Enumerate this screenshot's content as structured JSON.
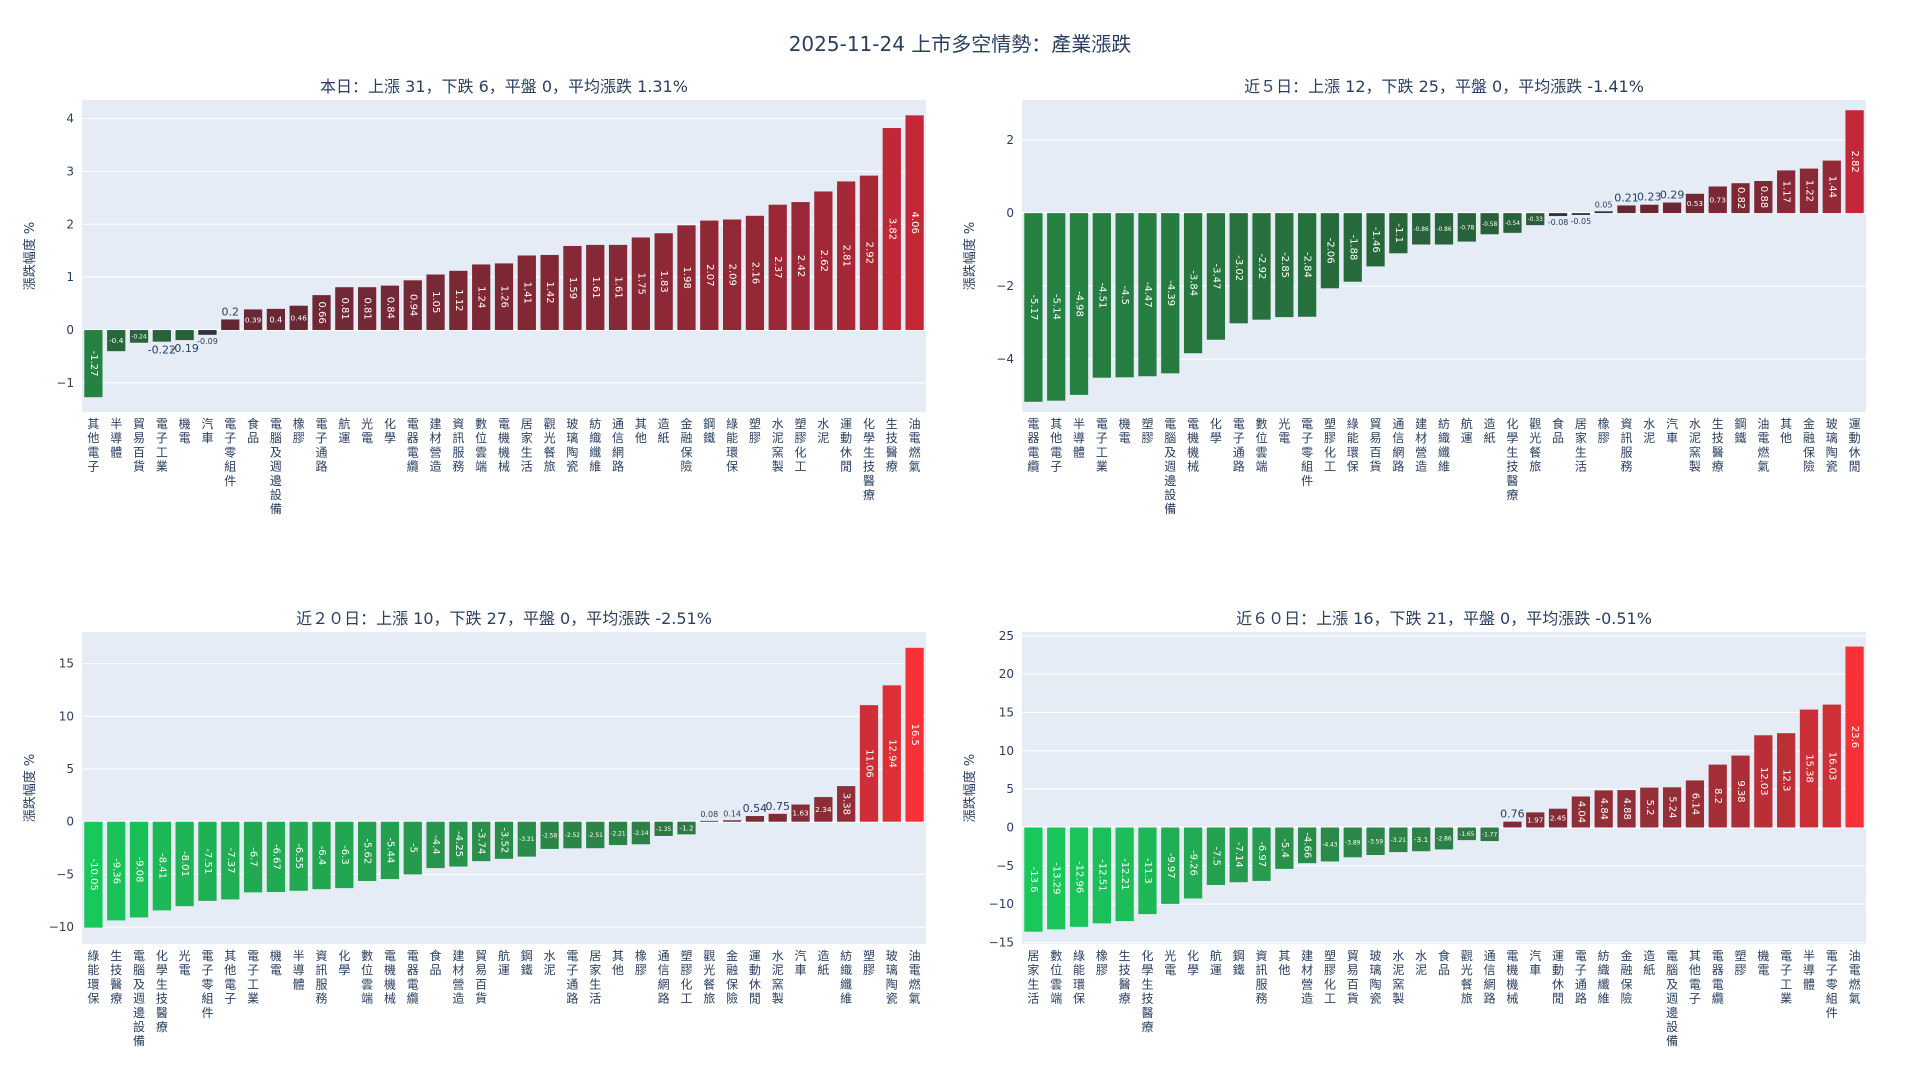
{
  "page": {
    "title": "2025-11-24 上市多空情勢：產業漲跌"
  },
  "chart_data": [
    {
      "type": "bar",
      "title": "本日：上漲 31，下跌 6，平盤 0，平均漲跌 1.31%",
      "ylabel": "漲跌幅度 %",
      "ylim": [
        -1.55,
        4.35
      ],
      "yticks": [
        -1,
        0,
        1,
        2,
        3,
        4
      ],
      "color_range": [
        -1.27,
        4.06
      ],
      "scheme": "dark",
      "categories": [
        "其他電子",
        "半導體",
        "貿易百貨",
        "電子工業",
        "機電",
        "汽車",
        "電子零組件",
        "食品",
        "電腦及週邊設備",
        "橡膠",
        "電子通路",
        "航運",
        "光電",
        "化學",
        "電器電纜",
        "建材營造",
        "資訊服務",
        "數位雲端",
        "電機機械",
        "居家生活",
        "觀光餐旅",
        "玻璃陶瓷",
        "紡織纖維",
        "通信網路",
        "其他",
        "造紙",
        "金融保險",
        "鋼鐵",
        "綠能環保",
        "塑膠",
        "水泥窯製",
        "塑膠化工",
        "水泥",
        "運動休閒",
        "化學生技醫療",
        "生技醫療",
        "油電燃氣"
      ],
      "values": [
        -1.27,
        -0.4,
        -0.24,
        -0.22,
        -0.19,
        -0.09,
        0.2,
        0.39,
        0.4,
        0.46,
        0.66,
        0.81,
        0.81,
        0.84,
        0.94,
        1.05,
        1.12,
        1.24,
        1.26,
        1.41,
        1.42,
        1.59,
        1.61,
        1.61,
        1.75,
        1.83,
        1.98,
        2.07,
        2.09,
        2.16,
        2.37,
        2.42,
        2.62,
        2.81,
        2.92,
        3.82,
        4.06
      ],
      "labels": [
        "-1.27",
        "-0.4",
        "-0.24",
        "-0.22",
        "-0.19",
        "-0.09",
        "0.2",
        "0.39",
        "0.4",
        "0.46",
        "0.66",
        "0.81",
        "0.81",
        "0.84",
        "0.94",
        "1.05",
        "1.12",
        "1.24",
        "1.26",
        "1.41",
        "1.42",
        "1.59",
        "1.61",
        "1.61",
        "1.75",
        "1.83",
        "1.98",
        "2.07",
        "2.09",
        "2.16",
        "2.37",
        "2.42",
        "2.62",
        "2.81",
        "2.92",
        "3.82",
        "4.06"
      ]
    },
    {
      "type": "bar",
      "title": "近５日：上漲 12，下跌 25，平盤 0，平均漲跌 -1.41%",
      "ylabel": "漲跌幅度 %",
      "ylim": [
        -5.45,
        3.1
      ],
      "yticks": [
        -4,
        -2,
        0,
        2
      ],
      "color_range": [
        -5.17,
        2.82
      ],
      "scheme": "dark",
      "categories": [
        "電器電纜",
        "其他電子",
        "半導體",
        "電子工業",
        "機電",
        "塑膠",
        "電腦及週邊設備",
        "電機機械",
        "化學",
        "電子通路",
        "數位雲端",
        "光電",
        "電子零組件",
        "塑膠化工",
        "綠能環保",
        "貿易百貨",
        "通信網路",
        "建材營造",
        "紡織纖維",
        "航運",
        "造紙",
        "化學生技醫療",
        "觀光餐旅",
        "食品",
        "居家生活",
        "橡膠",
        "資訊服務",
        "水泥",
        "汽車",
        "水泥窯製",
        "生技醫療",
        "鋼鐵",
        "油電燃氣",
        "其他",
        "金融保險",
        "玻璃陶瓷",
        "運動休閒"
      ],
      "values": [
        -5.17,
        -5.14,
        -4.98,
        -4.51,
        -4.5,
        -4.47,
        -4.39,
        -3.84,
        -3.47,
        -3.02,
        -2.92,
        -2.85,
        -2.84,
        -2.06,
        -1.88,
        -1.46,
        -1.1,
        -0.86,
        -0.86,
        -0.78,
        -0.58,
        -0.54,
        -0.33,
        -0.08,
        -0.05,
        0.05,
        0.21,
        0.23,
        0.29,
        0.53,
        0.73,
        0.82,
        0.88,
        1.17,
        1.22,
        1.44,
        2.82
      ],
      "labels": [
        "-5.17",
        "-5.14",
        "-4.98",
        "-4.51",
        "-4.5",
        "-4.47",
        "-4.39",
        "-3.84",
        "-3.47",
        "-3.02",
        "-2.92",
        "-2.85",
        "-2.84",
        "-2.06",
        "-1.88",
        "-1.46",
        "-1.1",
        "-0.86",
        "-0.86",
        "-0.78",
        "-0.58",
        "-0.54",
        "-0.33",
        "-0.08",
        "-0.05",
        "0.05",
        "0.21",
        "0.23",
        "0.29",
        "0.53",
        "0.73",
        "0.82",
        "0.88",
        "1.17",
        "1.22",
        "1.44",
        "2.82"
      ]
    },
    {
      "type": "bar",
      "title": "近２０日：上漲 10，下跌 27，平盤 0，平均漲跌 -2.51%",
      "ylabel": "漲跌幅度 %",
      "ylim": [
        -11.6,
        18.0
      ],
      "yticks": [
        -10,
        -5,
        0,
        5,
        10,
        15
      ],
      "color_range": [
        -10.05,
        16.5
      ],
      "scheme": "bright",
      "categories": [
        "綠能環保",
        "生技醫療",
        "電腦及週邊設備",
        "化學生技醫療",
        "光電",
        "電子零組件",
        "其他電子",
        "電子工業",
        "機電",
        "半導體",
        "資訊服務",
        "化學",
        "數位雲端",
        "電機機械",
        "電器電纜",
        "食品",
        "建材營造",
        "貿易百貨",
        "航運",
        "鋼鐵",
        "水泥",
        "電子通路",
        "居家生活",
        "其他",
        "橡膠",
        "通信網路",
        "塑膠化工",
        "觀光餐旅",
        "金融保險",
        "運動休閒",
        "水泥窯製",
        "汽車",
        "造紙",
        "紡織纖維",
        "塑膠",
        "玻璃陶瓷",
        "油電燃氣"
      ],
      "values": [
        -10.05,
        -9.36,
        -9.08,
        -8.41,
        -8.01,
        -7.51,
        -7.37,
        -6.7,
        -6.67,
        -6.55,
        -6.4,
        -6.3,
        -5.62,
        -5.44,
        -5.0,
        -4.4,
        -4.25,
        -3.74,
        -3.52,
        -3.31,
        -2.58,
        -2.52,
        -2.51,
        -2.21,
        -2.14,
        -1.35,
        -1.2,
        0.08,
        0.14,
        0.54,
        0.75,
        1.63,
        2.34,
        3.38,
        11.06,
        12.94,
        16.5
      ],
      "labels": [
        "-10.05",
        "-9.36",
        "-9.08",
        "-8.41",
        "-8.01",
        "-7.51",
        "-7.37",
        "-6.7",
        "-6.67",
        "-6.55",
        "-6.4",
        "-6.3",
        "-5.62",
        "-5.44",
        "-5",
        "-4.4",
        "-4.25",
        "-3.74",
        "-3.52",
        "-3.31",
        "-2.58",
        "-2.52",
        "-2.51",
        "-2.21",
        "-2.14",
        "-1.35",
        "-1.2",
        "0.08",
        "0.14",
        "0.54",
        "0.75",
        "1.63",
        "2.34",
        "3.38",
        "11.06",
        "12.94",
        "16.5"
      ]
    },
    {
      "type": "bar",
      "title": "近６０日：上漲 16，下跌 21，平盤 0，平均漲跌 -0.51%",
      "ylabel": "漲跌幅度 %",
      "ylim": [
        -15.2,
        25.5
      ],
      "yticks": [
        -15,
        -10,
        -5,
        0,
        5,
        10,
        15,
        20,
        25
      ],
      "color_range": [
        -13.6,
        23.6
      ],
      "scheme": "bright",
      "categories": [
        "居家生活",
        "數位雲端",
        "綠能環保",
        "橡膠",
        "生技醫療",
        "化學生技醫療",
        "光電",
        "化學",
        "航運",
        "鋼鐵",
        "資訊服務",
        "其他",
        "建材營造",
        "塑膠化工",
        "貿易百貨",
        "玻璃陶瓷",
        "水泥窯製",
        "水泥",
        "食品",
        "觀光餐旅",
        "通信網路",
        "電機機械",
        "汽車",
        "運動休閒",
        "電子通路",
        "紡織纖維",
        "金融保險",
        "造紙",
        "電腦及週邊設備",
        "其他電子",
        "電器電纜",
        "塑膠",
        "機電",
        "電子工業",
        "半導體",
        "電子零組件",
        "油電燃氣"
      ],
      "values": [
        -13.6,
        -13.29,
        -12.96,
        -12.51,
        -12.21,
        -11.3,
        -9.97,
        -9.26,
        -7.5,
        -7.14,
        -6.97,
        -5.4,
        -4.66,
        -4.43,
        -3.89,
        -3.59,
        -3.21,
        -3.1,
        -2.86,
        -1.65,
        -1.77,
        0.76,
        1.97,
        2.45,
        4.04,
        4.84,
        4.88,
        5.2,
        5.24,
        6.14,
        8.2,
        9.38,
        12.03,
        12.3,
        15.38,
        16.03,
        23.6
      ],
      "labels": [
        "-13.6",
        "-13.29",
        "-12.96",
        "-12.51",
        "-12.21",
        "-11.3",
        "-9.97",
        "-9.26",
        "-7.5",
        "-7.14",
        "-6.97",
        "-5.4",
        "-4.66",
        "-4.43",
        "-3.89",
        "-3.59",
        "-3.21",
        "-3.1",
        "-2.86",
        "-1.65",
        "-1.77",
        "0.76",
        "1.97",
        "2.45",
        "4.04",
        "4.84",
        "4.88",
        "5.2",
        "5.24",
        "6.14",
        "8.2",
        "9.38",
        "12.03",
        "12.3",
        "15.38",
        "16.03",
        "23.6"
      ]
    }
  ]
}
